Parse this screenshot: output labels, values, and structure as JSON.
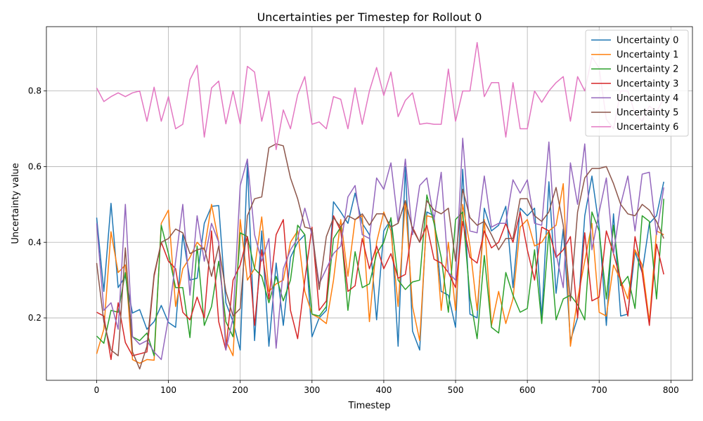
{
  "chart_data": {
    "type": "line",
    "title": "Uncertainties per Timestep for Rollout 0",
    "xlabel": "Timestep",
    "ylabel": "Uncertainty value",
    "xlim": [
      -70,
      830
    ],
    "ylim": [
      0.035,
      0.97
    ],
    "xticks": [
      0,
      100,
      200,
      300,
      400,
      500,
      600,
      700,
      800
    ],
    "yticks": [
      0.2,
      0.4,
      0.6,
      0.8
    ],
    "ytick_labels": [
      "0.2",
      "0.4",
      "0.6",
      "0.8"
    ],
    "grid": true,
    "legend_position": "top-right",
    "x": [
      0,
      10,
      20,
      30,
      40,
      50,
      60,
      70,
      80,
      90,
      100,
      110,
      120,
      130,
      140,
      150,
      160,
      170,
      180,
      190,
      200,
      210,
      220,
      230,
      240,
      250,
      260,
      270,
      280,
      290,
      300,
      310,
      320,
      330,
      340,
      350,
      360,
      370,
      380,
      390,
      400,
      410,
      420,
      430,
      440,
      450,
      460,
      470,
      480,
      490,
      500,
      510,
      520,
      530,
      540,
      550,
      560,
      570,
      580,
      590,
      600,
      610,
      620,
      630,
      640,
      650,
      660,
      670,
      680,
      690,
      700,
      710,
      720,
      730,
      740,
      750,
      760,
      770,
      780,
      790
    ],
    "series": [
      {
        "name": "Uncertainty 0",
        "color": "#1f77b4",
        "values": [
          0.465,
          0.27,
          0.503,
          0.28,
          0.31,
          0.213,
          0.222,
          0.17,
          0.19,
          0.233,
          0.188,
          0.175,
          0.42,
          0.3,
          0.305,
          0.45,
          0.495,
          0.497,
          0.24,
          0.19,
          0.115,
          0.61,
          0.14,
          0.43,
          0.125,
          0.345,
          0.18,
          0.36,
          0.4,
          0.42,
          0.15,
          0.2,
          0.22,
          0.507,
          0.48,
          0.45,
          0.53,
          0.45,
          0.42,
          0.195,
          0.43,
          0.46,
          0.125,
          0.6,
          0.165,
          0.115,
          0.48,
          0.47,
          0.27,
          0.26,
          0.175,
          0.593,
          0.21,
          0.2,
          0.49,
          0.43,
          0.445,
          0.495,
          0.28,
          0.49,
          0.47,
          0.49,
          0.2,
          0.56,
          0.265,
          0.435,
          0.14,
          0.2,
          0.47,
          0.575,
          0.44,
          0.18,
          0.475,
          0.205,
          0.21,
          0.375,
          0.32,
          0.45,
          0.47,
          0.56
        ]
      },
      {
        "name": "Uncertainty 1",
        "color": "#ff7f0e",
        "values": [
          0.105,
          0.17,
          0.428,
          0.32,
          0.34,
          0.09,
          0.08,
          0.09,
          0.088,
          0.45,
          0.485,
          0.23,
          0.33,
          0.36,
          0.4,
          0.38,
          0.5,
          0.4,
          0.14,
          0.1,
          0.46,
          0.3,
          0.33,
          0.467,
          0.27,
          0.29,
          0.3,
          0.4,
          0.43,
          0.27,
          0.21,
          0.2,
          0.185,
          0.3,
          0.46,
          0.31,
          0.46,
          0.47,
          0.19,
          0.4,
          0.48,
          0.43,
          0.23,
          0.51,
          0.23,
          0.14,
          0.47,
          0.465,
          0.22,
          0.4,
          0.22,
          0.5,
          0.39,
          0.22,
          0.46,
          0.18,
          0.27,
          0.185,
          0.25,
          0.44,
          0.46,
          0.39,
          0.4,
          0.43,
          0.445,
          0.555,
          0.125,
          0.25,
          0.35,
          0.45,
          0.215,
          0.205,
          0.34,
          0.3,
          0.25,
          0.38,
          0.34,
          0.19,
          0.43,
          0.42
        ]
      },
      {
        "name": "Uncertainty 2",
        "color": "#2ca02c",
        "values": [
          0.152,
          0.133,
          0.22,
          0.215,
          0.32,
          0.15,
          0.14,
          0.16,
          0.1,
          0.445,
          0.37,
          0.28,
          0.28,
          0.148,
          0.39,
          0.18,
          0.23,
          0.35,
          0.19,
          0.15,
          0.425,
          0.415,
          0.33,
          0.31,
          0.24,
          0.31,
          0.245,
          0.3,
          0.445,
          0.42,
          0.21,
          0.205,
          0.23,
          0.41,
          0.44,
          0.22,
          0.375,
          0.28,
          0.29,
          0.37,
          0.4,
          0.465,
          0.3,
          0.275,
          0.295,
          0.3,
          0.525,
          0.45,
          0.36,
          0.215,
          0.46,
          0.48,
          0.255,
          0.145,
          0.365,
          0.175,
          0.16,
          0.32,
          0.26,
          0.215,
          0.225,
          0.38,
          0.185,
          0.43,
          0.195,
          0.25,
          0.26,
          0.235,
          0.195,
          0.48,
          0.43,
          0.25,
          0.445,
          0.285,
          0.31,
          0.225,
          0.47,
          0.455,
          0.25,
          0.515
        ]
      },
      {
        "name": "Uncertainty 3",
        "color": "#d62728",
        "values": [
          0.215,
          0.205,
          0.09,
          0.24,
          0.135,
          0.1,
          0.105,
          0.11,
          0.31,
          0.4,
          0.35,
          0.33,
          0.215,
          0.195,
          0.255,
          0.2,
          0.43,
          0.19,
          0.115,
          0.3,
          0.34,
          0.415,
          0.18,
          0.38,
          0.25,
          0.42,
          0.46,
          0.22,
          0.145,
          0.3,
          0.44,
          0.22,
          0.245,
          0.47,
          0.43,
          0.27,
          0.285,
          0.41,
          0.33,
          0.39,
          0.33,
          0.37,
          0.305,
          0.315,
          0.44,
          0.4,
          0.445,
          0.355,
          0.345,
          0.32,
          0.28,
          0.455,
          0.36,
          0.345,
          0.43,
          0.385,
          0.4,
          0.45,
          0.4,
          0.48,
          0.38,
          0.3,
          0.44,
          0.43,
          0.36,
          0.38,
          0.415,
          0.2,
          0.425,
          0.245,
          0.255,
          0.43,
          0.37,
          0.3,
          0.205,
          0.415,
          0.32,
          0.18,
          0.395,
          0.315
        ]
      },
      {
        "name": "Uncertainty 4",
        "color": "#9467bd",
        "values": [
          0.45,
          0.22,
          0.24,
          0.17,
          0.5,
          0.15,
          0.13,
          0.14,
          0.11,
          0.09,
          0.2,
          0.35,
          0.5,
          0.26,
          0.47,
          0.35,
          0.45,
          0.4,
          0.115,
          0.2,
          0.55,
          0.62,
          0.42,
          0.35,
          0.41,
          0.12,
          0.33,
          0.38,
          0.41,
          0.49,
          0.42,
          0.29,
          0.33,
          0.37,
          0.39,
          0.52,
          0.55,
          0.42,
          0.41,
          0.57,
          0.54,
          0.61,
          0.45,
          0.62,
          0.42,
          0.55,
          0.57,
          0.46,
          0.585,
          0.32,
          0.3,
          0.675,
          0.43,
          0.425,
          0.575,
          0.44,
          0.45,
          0.45,
          0.565,
          0.53,
          0.565,
          0.45,
          0.445,
          0.665,
          0.37,
          0.28,
          0.61,
          0.5,
          0.66,
          0.38,
          0.48,
          0.57,
          0.37,
          0.5,
          0.575,
          0.43,
          0.58,
          0.585,
          0.42,
          0.545
        ]
      },
      {
        "name": "Uncertainty 5",
        "color": "#8c564b",
        "values": [
          0.345,
          0.19,
          0.115,
          0.1,
          0.385,
          0.11,
          0.065,
          0.125,
          0.315,
          0.4,
          0.41,
          0.435,
          0.425,
          0.37,
          0.38,
          0.385,
          0.31,
          0.39,
          0.27,
          0.205,
          0.225,
          0.47,
          0.515,
          0.52,
          0.65,
          0.66,
          0.655,
          0.57,
          0.515,
          0.44,
          0.435,
          0.275,
          0.415,
          0.465,
          0.44,
          0.47,
          0.46,
          0.475,
          0.445,
          0.475,
          0.475,
          0.44,
          0.45,
          0.51,
          0.435,
          0.4,
          0.51,
          0.485,
          0.475,
          0.49,
          0.35,
          0.54,
          0.465,
          0.445,
          0.455,
          0.42,
          0.38,
          0.41,
          0.41,
          0.515,
          0.515,
          0.47,
          0.455,
          0.48,
          0.545,
          0.445,
          0.245,
          0.48,
          0.57,
          0.595,
          0.595,
          0.6,
          0.555,
          0.5,
          0.475,
          0.47,
          0.5,
          0.485,
          0.455,
          0.41
        ]
      },
      {
        "name": "Uncertainty 6",
        "color": "#e377c2",
        "values": [
          0.808,
          0.772,
          0.785,
          0.795,
          0.785,
          0.795,
          0.8,
          0.72,
          0.81,
          0.72,
          0.785,
          0.7,
          0.712,
          0.83,
          0.868,
          0.678,
          0.808,
          0.826,
          0.713,
          0.8,
          0.713,
          0.865,
          0.85,
          0.72,
          0.8,
          0.645,
          0.75,
          0.7,
          0.79,
          0.838,
          0.712,
          0.718,
          0.7,
          0.785,
          0.778,
          0.7,
          0.808,
          0.712,
          0.8,
          0.862,
          0.788,
          0.85,
          0.732,
          0.775,
          0.795,
          0.712,
          0.715,
          0.712,
          0.712,
          0.858,
          0.72,
          0.8,
          0.8,
          0.928,
          0.785,
          0.822,
          0.822,
          0.678,
          0.822,
          0.7,
          0.7,
          0.8,
          0.77,
          0.8,
          0.822,
          0.838,
          0.72,
          0.838,
          0.8,
          0.89,
          0.86,
          0.725,
          0.7,
          0.8,
          0.8,
          0.74,
          0.72,
          0.76,
          0.745,
          0.78
        ]
      }
    ]
  }
}
